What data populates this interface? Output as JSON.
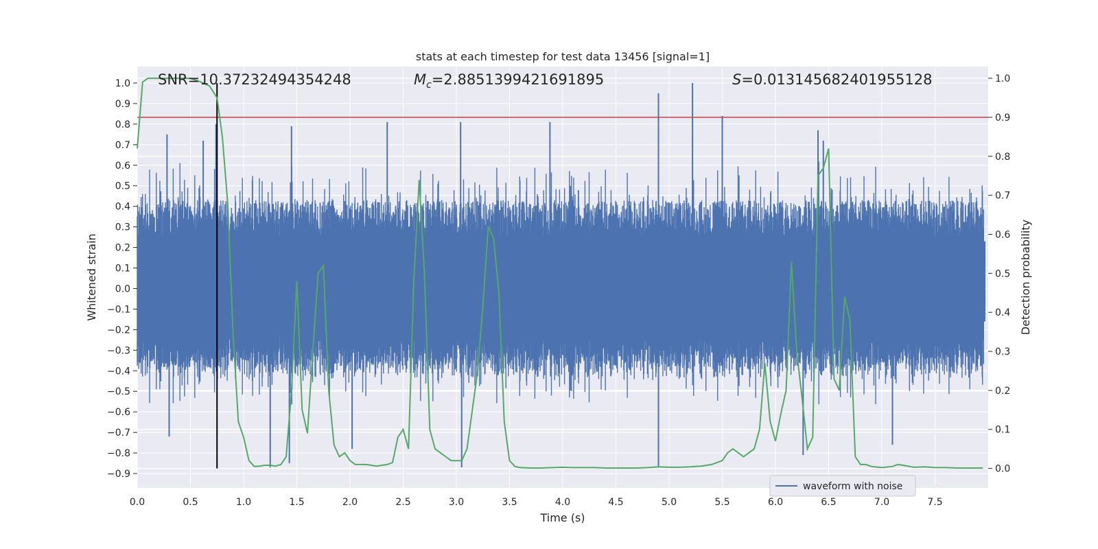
{
  "chart_data": {
    "type": "line",
    "title": "stats at each timestep for test data 13456 [signal=1]",
    "xlabel": "Time (s)",
    "ylabel_left": "Whitened strain",
    "ylabel_right": "Detection probability",
    "xlim": [
      0.0,
      8.0
    ],
    "ylim_left": [
      -0.97,
      1.08
    ],
    "ylim_right": [
      -0.05,
      1.03
    ],
    "x_ticks": [
      0.0,
      0.5,
      1.0,
      1.5,
      2.0,
      2.5,
      3.0,
      3.5,
      4.0,
      4.5,
      5.0,
      5.5,
      6.0,
      6.5,
      7.0,
      7.5
    ],
    "x_tick_labels": [
      "0.0",
      "0.5",
      "1.0",
      "1.5",
      "2.0",
      "2.5",
      "3.0",
      "3.5",
      "4.0",
      "4.5",
      "5.0",
      "5.5",
      "6.0",
      "6.5",
      "7.0",
      "7.5"
    ],
    "y_ticks_left": [
      1.0,
      0.9,
      0.8,
      0.7,
      0.6,
      0.5,
      0.4,
      0.3,
      0.2,
      0.1,
      0.0,
      -0.1,
      -0.2,
      -0.3,
      -0.4,
      -0.5,
      -0.6,
      -0.7,
      -0.8,
      -0.9
    ],
    "y_tick_labels_left": [
      "1.0",
      "0.9",
      "0.8",
      "0.7",
      "0.6",
      "0.5",
      "0.4",
      "0.3",
      "0.2",
      "0.1",
      "0.0",
      "−0.1",
      "−0.2",
      "−0.3",
      "−0.4",
      "−0.5",
      "−0.6",
      "−0.7",
      "−0.8",
      "−0.9"
    ],
    "y_ticks_right": [
      1.0,
      0.9,
      0.8,
      0.7,
      0.6,
      0.5,
      0.4,
      0.3,
      0.2,
      0.1,
      0.0
    ],
    "y_tick_labels_right": [
      "1.0",
      "0.9",
      "0.8",
      "0.7",
      "0.6",
      "0.5",
      "0.4",
      "0.3",
      "0.2",
      "0.1",
      "0.0"
    ],
    "annotations": {
      "snr": "SNR=10.37232494354248",
      "mc_symbol": "M",
      "mc_sub": "c",
      "mc_value": "=2.8851399421691895",
      "s_symbol": "S",
      "s_value": "=0.013145682401955128"
    },
    "threshold_probability": 0.9,
    "marker_time": 0.75,
    "legend": {
      "label": "waveform with noise",
      "placement": "lower-right"
    },
    "series": [
      {
        "name": "waveform with noise",
        "axis": "left",
        "style": "dense-noise",
        "baseline_low": -0.31,
        "baseline_high": 0.43,
        "spikes": [
          {
            "t": 0.62,
            "v": 0.72
          },
          {
            "t": 0.74,
            "v": 0.8
          },
          {
            "t": 0.28,
            "v": 0.75
          },
          {
            "t": 1.45,
            "v": 0.79
          },
          {
            "t": 2.35,
            "v": 0.81
          },
          {
            "t": 3.04,
            "v": 0.81
          },
          {
            "t": 3.88,
            "v": 0.81
          },
          {
            "t": 4.9,
            "v": 0.95
          },
          {
            "t": 5.22,
            "v": 1.0
          },
          {
            "t": 5.5,
            "v": 0.84
          },
          {
            "t": 6.4,
            "v": 0.77
          },
          {
            "t": 6.45,
            "v": 0.72
          },
          {
            "t": 1.25,
            "v": -0.87
          },
          {
            "t": 1.43,
            "v": -0.85
          },
          {
            "t": 3.05,
            "v": -0.87
          },
          {
            "t": 4.9,
            "v": -0.87
          },
          {
            "t": 6.26,
            "v": -0.81
          },
          {
            "t": 7.1,
            "v": -0.76
          },
          {
            "t": 0.3,
            "v": -0.72
          },
          {
            "t": 2.02,
            "v": -0.78
          }
        ]
      },
      {
        "name": "detection probability",
        "axis": "right",
        "x": [
          0.0,
          0.05,
          0.1,
          0.2,
          0.3,
          0.4,
          0.5,
          0.6,
          0.68,
          0.75,
          0.8,
          0.85,
          0.9,
          0.95,
          1.0,
          1.05,
          1.1,
          1.15,
          1.2,
          1.25,
          1.3,
          1.35,
          1.4,
          1.45,
          1.5,
          1.55,
          1.6,
          1.65,
          1.7,
          1.75,
          1.8,
          1.85,
          1.9,
          1.95,
          2.0,
          2.05,
          2.1,
          2.15,
          2.2,
          2.25,
          2.3,
          2.35,
          2.4,
          2.45,
          2.5,
          2.55,
          2.6,
          2.65,
          2.7,
          2.75,
          2.8,
          2.85,
          2.9,
          2.95,
          3.0,
          3.05,
          3.1,
          3.15,
          3.2,
          3.25,
          3.3,
          3.35,
          3.4,
          3.45,
          3.5,
          3.55,
          3.6,
          3.7,
          3.8,
          3.9,
          4.0,
          4.1,
          4.2,
          4.3,
          4.4,
          4.5,
          4.6,
          4.7,
          4.8,
          4.9,
          5.0,
          5.1,
          5.2,
          5.3,
          5.4,
          5.5,
          5.55,
          5.6,
          5.65,
          5.7,
          5.75,
          5.8,
          5.85,
          5.9,
          5.95,
          6.0,
          6.05,
          6.1,
          6.15,
          6.2,
          6.25,
          6.3,
          6.35,
          6.4,
          6.45,
          6.5,
          6.55,
          6.6,
          6.65,
          6.7,
          6.75,
          6.8,
          6.85,
          6.9,
          7.0,
          7.1,
          7.15,
          7.2,
          7.3,
          7.4,
          7.5,
          7.6,
          7.7,
          7.8,
          7.9,
          7.95
        ],
        "values": [
          0.82,
          0.99,
          1.0,
          1.0,
          1.0,
          1.0,
          1.0,
          0.99,
          0.98,
          0.95,
          0.85,
          0.68,
          0.35,
          0.12,
          0.08,
          0.02,
          0.005,
          0.006,
          0.008,
          0.008,
          0.006,
          0.01,
          0.03,
          0.2,
          0.48,
          0.15,
          0.09,
          0.3,
          0.5,
          0.52,
          0.2,
          0.06,
          0.03,
          0.04,
          0.02,
          0.01,
          0.01,
          0.01,
          0.008,
          0.006,
          0.008,
          0.01,
          0.015,
          0.08,
          0.1,
          0.05,
          0.48,
          0.74,
          0.5,
          0.1,
          0.05,
          0.04,
          0.03,
          0.02,
          0.02,
          0.02,
          0.05,
          0.15,
          0.25,
          0.42,
          0.62,
          0.59,
          0.45,
          0.12,
          0.02,
          0.005,
          0.002,
          0.001,
          0.001,
          0.002,
          0.003,
          0.002,
          0.002,
          0.002,
          0.001,
          0.001,
          0.001,
          0.001,
          0.002,
          0.004,
          0.003,
          0.003,
          0.004,
          0.006,
          0.01,
          0.02,
          0.04,
          0.05,
          0.04,
          0.03,
          0.04,
          0.05,
          0.1,
          0.27,
          0.12,
          0.07,
          0.14,
          0.2,
          0.53,
          0.3,
          0.18,
          0.05,
          0.08,
          0.75,
          0.77,
          0.82,
          0.23,
          0.2,
          0.44,
          0.38,
          0.03,
          0.01,
          0.01,
          0.005,
          0.002,
          0.005,
          0.01,
          0.008,
          0.003,
          0.004,
          0.002,
          0.002,
          0.001,
          0.001,
          0.001,
          0.001
        ]
      }
    ]
  },
  "colors": {
    "waveform": "#4c72b0",
    "probability": "#55a868",
    "threshold": "#c44e52",
    "marker": "#000000",
    "plot_bg": "#eaeaf2",
    "grid": "#ffffff"
  }
}
